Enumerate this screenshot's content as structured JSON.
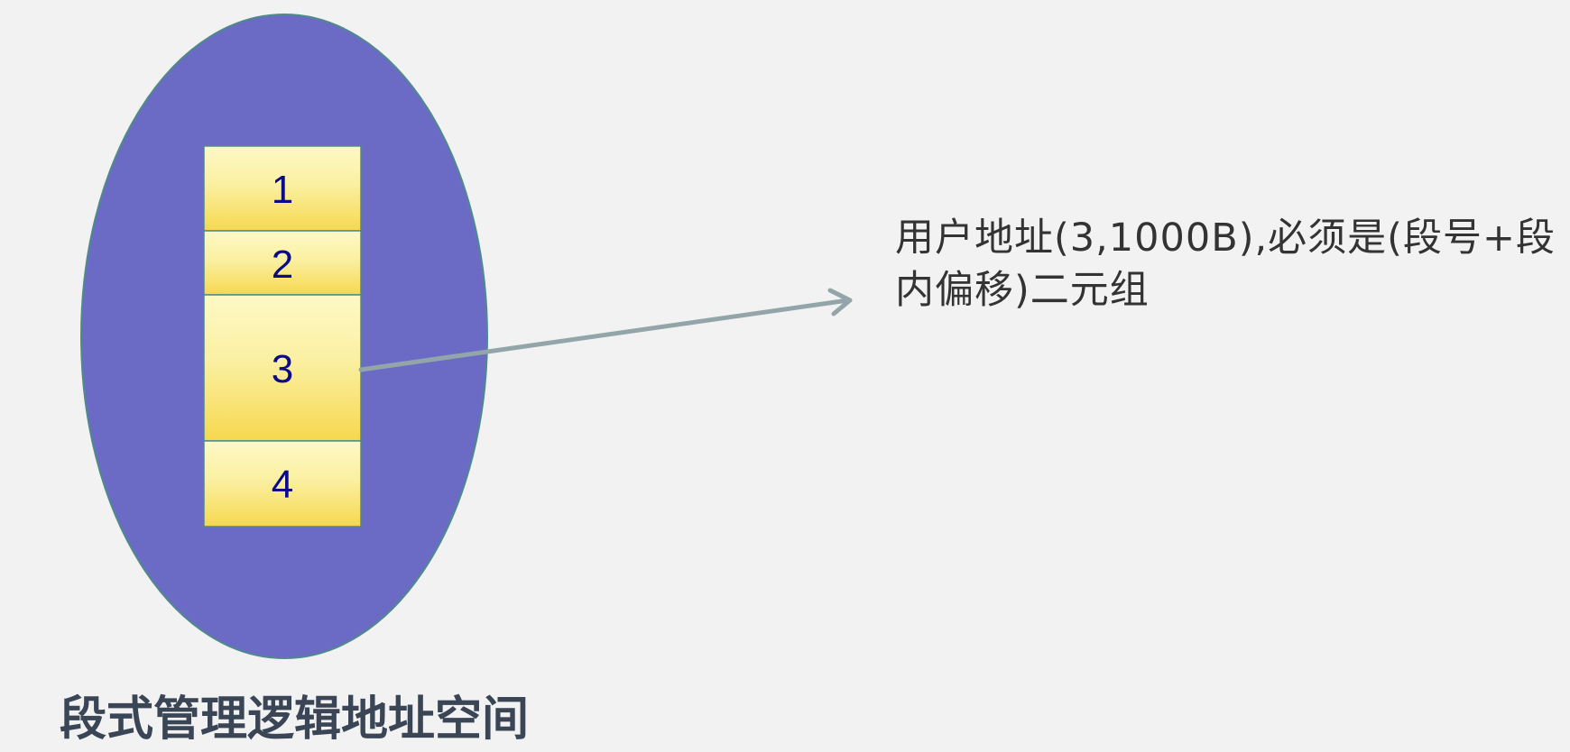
{
  "diagram": {
    "segments": [
      {
        "label": "1"
      },
      {
        "label": "2"
      },
      {
        "label": "3"
      },
      {
        "label": "4"
      }
    ],
    "annotation_text": "用户地址(3,1000B),必须是(段号+段内偏移)二元组",
    "caption": "段式管理逻辑地址空间",
    "colors": {
      "background": "#f2f2f2",
      "ellipse_fill": "#6b6bc6",
      "ellipse_stroke": "#4f8a8b",
      "segment_top": "#fdf9c6",
      "segment_bottom": "#f6d84e",
      "segment_border": "#4f8a8b",
      "segment_text": "#0b0b8a",
      "arrow": "#93a5a8",
      "caption_text": "#3a4555"
    }
  }
}
